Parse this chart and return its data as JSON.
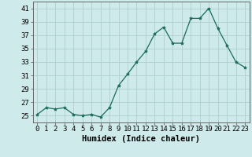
{
  "x": [
    0,
    1,
    2,
    3,
    4,
    5,
    6,
    7,
    8,
    9,
    10,
    11,
    12,
    13,
    14,
    15,
    16,
    17,
    18,
    19,
    20,
    21,
    22,
    23
  ],
  "y": [
    25.2,
    26.2,
    26.0,
    26.2,
    25.2,
    25.0,
    25.2,
    24.8,
    26.2,
    29.5,
    31.2,
    33.0,
    34.6,
    37.2,
    38.2,
    35.8,
    35.8,
    39.5,
    39.5,
    41.0,
    38.0,
    35.5,
    33.0,
    32.2
  ],
  "line_color": "#1a6b5a",
  "marker": "*",
  "marker_size": 3,
  "bg_color": "#ceeaea",
  "grid_color": "#aecece",
  "xlabel": "Humidex (Indice chaleur)",
  "ylim": [
    24,
    42
  ],
  "yticks": [
    25,
    27,
    29,
    31,
    33,
    35,
    37,
    39,
    41
  ],
  "xticks": [
    0,
    1,
    2,
    3,
    4,
    5,
    6,
    7,
    8,
    9,
    10,
    11,
    12,
    13,
    14,
    15,
    16,
    17,
    18,
    19,
    20,
    21,
    22,
    23
  ],
  "tick_fontsize": 6.5,
  "xlabel_fontsize": 7.5
}
